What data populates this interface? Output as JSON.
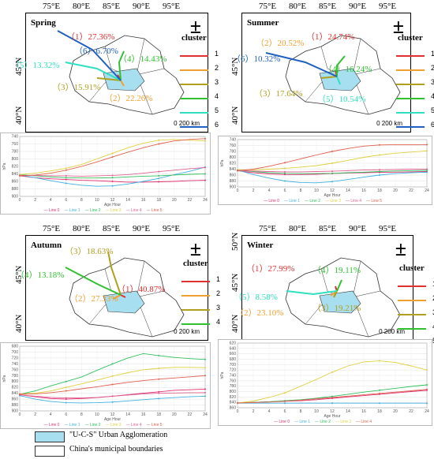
{
  "coords": {
    "top": [
      "75°E",
      "80°E",
      "85°E",
      "90°E",
      "95°E"
    ],
    "left": [
      "40°N",
      "45°N"
    ],
    "left_winter": [
      "40°N",
      "45°N",
      "50°N"
    ]
  },
  "legend_title": "cluster",
  "scale_label": "0    200 km",
  "colors": {
    "c1": "#e03030",
    "c2": "#f0a030",
    "c3": "#b0a020",
    "c4": "#30c030",
    "c5": "#30e0c0",
    "c6": "#2060c0",
    "agglomeration": "#a8dff0"
  },
  "panels": [
    {
      "season": "Spring",
      "clusters": [
        "1",
        "2",
        "3",
        "4",
        "5",
        "6"
      ],
      "labels": [
        {
          "text": "（1）27.36%",
          "color": "#e03030"
        },
        {
          "text": "（2）22.26%",
          "color": "#f0a030"
        },
        {
          "text": "（3）15.91%",
          "color": "#b0a020"
        },
        {
          "text": "（4）14.43%",
          "color": "#30c030"
        },
        {
          "text": "（5）13.32%",
          "color": "#30e0c0"
        },
        {
          "text": "（6）6.70%",
          "color": "#2060c0"
        }
      ]
    },
    {
      "season": "Summer",
      "clusters": [
        "1",
        "2",
        "3",
        "4",
        "5",
        "6"
      ],
      "labels": [
        {
          "text": "（1）24.74%",
          "color": "#e03030"
        },
        {
          "text": "（2）20.52%",
          "color": "#f0a030"
        },
        {
          "text": "（3）17.64%",
          "color": "#b0a020"
        },
        {
          "text": "（4）16.24%",
          "color": "#30c030"
        },
        {
          "text": "（5）10.54%",
          "color": "#30e0c0"
        },
        {
          "text": "（6）10.32%",
          "color": "#2060c0"
        }
      ]
    },
    {
      "season": "Autumn",
      "clusters": [
        "1",
        "2",
        "3",
        "4"
      ],
      "labels": [
        {
          "text": "（1）40.87%",
          "color": "#e03030"
        },
        {
          "text": "（2）27.33%",
          "color": "#f0a030"
        },
        {
          "text": "（3）18.63%",
          "color": "#b0a020"
        },
        {
          "text": "（4）13.18%",
          "color": "#30c030"
        }
      ]
    },
    {
      "season": "Winter",
      "clusters": [
        "1",
        "2",
        "3",
        "4",
        "5"
      ],
      "labels": [
        {
          "text": "（1）27.99%",
          "color": "#e03030"
        },
        {
          "text": "（2）23.10%",
          "color": "#f0a030"
        },
        {
          "text": "（3）19.21%",
          "color": "#b0a020"
        },
        {
          "text": "（4）19.11%",
          "color": "#30c030"
        },
        {
          "text": "（5）8.58%",
          "color": "#30e0c0"
        }
      ]
    }
  ],
  "chart_data": [
    {
      "type": "line",
      "xlabel": "Age Hour",
      "ylabel": "hPa",
      "x": [
        0,
        2,
        4,
        6,
        8,
        10,
        12,
        14,
        16,
        18,
        20,
        22,
        24
      ],
      "ylim": [
        900,
        740
      ],
      "yticks": [
        740,
        760,
        780,
        800,
        820,
        840,
        860,
        880,
        900
      ],
      "series": [
        {
          "name": "Line 0",
          "color": "#e03070",
          "values": [
            845,
            850,
            853,
            855,
            857,
            858,
            860,
            862,
            862,
            861,
            860,
            858,
            857
          ]
        },
        {
          "name": "Line 1",
          "color": "#40b0e0",
          "values": [
            843,
            850,
            858,
            865,
            870,
            873,
            872,
            867,
            860,
            852,
            842,
            833,
            822
          ]
        },
        {
          "name": "Line 2",
          "color": "#30c060",
          "values": [
            842,
            845,
            848,
            850,
            851,
            851,
            850,
            848,
            846,
            845,
            843,
            841,
            840
          ]
        },
        {
          "name": "Line 3",
          "color": "#e0d040",
          "values": [
            842,
            838,
            832,
            825,
            815,
            800,
            785,
            770,
            758,
            750,
            748,
            750,
            752
          ]
        },
        {
          "name": "Line 4",
          "color": "#e06090",
          "values": [
            844,
            844,
            845,
            845,
            846,
            845,
            844,
            842,
            838,
            834,
            830,
            826,
            823
          ]
        },
        {
          "name": "Line 5",
          "color": "#e06050",
          "values": [
            845,
            843,
            838,
            830,
            820,
            808,
            795,
            782,
            770,
            760,
            752,
            748,
            746
          ]
        }
      ]
    },
    {
      "type": "line",
      "xlabel": "Age Hour",
      "ylabel": "hPa",
      "x": [
        0,
        2,
        4,
        6,
        8,
        10,
        12,
        14,
        16,
        18,
        20,
        22,
        24
      ],
      "ylim": [
        900,
        740
      ],
      "yticks": [
        740,
        760,
        780,
        800,
        820,
        840,
        860,
        880,
        900
      ],
      "series": [
        {
          "name": "Line 0",
          "color": "#e03070",
          "values": [
            845,
            852,
            856,
            858,
            858,
            857,
            855,
            853,
            852,
            851,
            850,
            849,
            848
          ]
        },
        {
          "name": "Line 1",
          "color": "#40b0e0",
          "values": [
            843,
            858,
            870,
            880,
            885,
            886,
            882,
            875,
            867,
            860,
            855,
            852,
            850
          ]
        },
        {
          "name": "Line 2",
          "color": "#30c060",
          "values": [
            843,
            848,
            852,
            854,
            855,
            855,
            854,
            852,
            850,
            848,
            846,
            845,
            844
          ]
        },
        {
          "name": "Line 3",
          "color": "#e0d040",
          "values": [
            842,
            842,
            840,
            837,
            833,
            828,
            820,
            810,
            800,
            792,
            786,
            782,
            778
          ]
        },
        {
          "name": "Line 4",
          "color": "#e06090",
          "values": [
            844,
            846,
            848,
            849,
            849,
            848,
            847,
            845,
            843,
            842,
            841,
            840,
            840
          ]
        },
        {
          "name": "Line 5",
          "color": "#e06050",
          "values": [
            845,
            840,
            830,
            818,
            805,
            792,
            780,
            770,
            762,
            758,
            757,
            757,
            757
          ]
        }
      ]
    },
    {
      "type": "line",
      "xlabel": "Age Hour",
      "ylabel": "hPa",
      "x": [
        0,
        2,
        4,
        6,
        8,
        10,
        12,
        14,
        16,
        18,
        20,
        22,
        24
      ],
      "ylim": [
        900,
        680
      ],
      "yticks": [
        680,
        700,
        720,
        740,
        760,
        780,
        800,
        820,
        840,
        860,
        880,
        900
      ],
      "series": [
        {
          "name": "Line 0",
          "color": "#e03070",
          "values": [
            845,
            852,
            858,
            860,
            858,
            855,
            850,
            845,
            840,
            835,
            830,
            828,
            826
          ]
        },
        {
          "name": "Line 1",
          "color": "#40b0e0",
          "values": [
            848,
            860,
            868,
            872,
            873,
            872,
            870,
            866,
            862,
            858,
            855,
            852,
            850
          ]
        },
        {
          "name": "Line 2",
          "color": "#30c060",
          "values": [
            843,
            832,
            815,
            800,
            785,
            762,
            740,
            720,
            705,
            712,
            718,
            722,
            725
          ]
        },
        {
          "name": "Line 3",
          "color": "#e0d040",
          "values": [
            842,
            840,
            832,
            820,
            808,
            795,
            782,
            770,
            760,
            755,
            752,
            752,
            753
          ]
        },
        {
          "name": "Line 4",
          "color": "#e06090",
          "values": [
            845,
            850,
            854,
            856,
            856,
            854,
            850,
            846,
            842,
            840,
            839,
            838,
            838
          ]
        },
        {
          "name": "Line 5",
          "color": "#e06050",
          "values": [
            843,
            842,
            838,
            832,
            825,
            818,
            810,
            803,
            797,
            792,
            788,
            784,
            780
          ]
        }
      ]
    },
    {
      "type": "line",
      "xlabel": "Age Hour",
      "ylabel": "hPa",
      "x": [
        0,
        2,
        4,
        6,
        8,
        10,
        12,
        14,
        16,
        18,
        20,
        22,
        24
      ],
      "ylim": [
        860,
        620
      ],
      "yticks": [
        620,
        640,
        660,
        680,
        700,
        720,
        740,
        760,
        780,
        800,
        820,
        840,
        860
      ],
      "series": [
        {
          "name": "Line 0",
          "color": "#e03070",
          "values": [
            842,
            840,
            838,
            836,
            834,
            830,
            825,
            820,
            815,
            810,
            805,
            800,
            795
          ]
        },
        {
          "name": "Line 1",
          "color": "#40b0e0",
          "values": [
            843,
            843,
            843,
            843,
            843,
            843,
            843,
            843,
            843,
            843,
            843,
            843,
            843
          ]
        },
        {
          "name": "Line 2",
          "color": "#30c060",
          "values": [
            842,
            840,
            838,
            834,
            830,
            825,
            818,
            810,
            802,
            795,
            788,
            781,
            775
          ]
        },
        {
          "name": "Line 3",
          "color": "#e0d040",
          "values": [
            842,
            835,
            822,
            805,
            780,
            755,
            728,
            705,
            690,
            686,
            692,
            705,
            720
          ]
        },
        {
          "name": "Line 4",
          "color": "#e06050",
          "values": [
            842,
            841,
            839,
            836,
            832,
            827,
            822,
            817,
            812,
            807,
            802,
            797,
            792
          ]
        }
      ]
    }
  ],
  "bottom_legend": {
    "agglomeration": "\"U-C-S\" Urban Agglomeration",
    "boundaries": "China's municipal boundaries"
  }
}
